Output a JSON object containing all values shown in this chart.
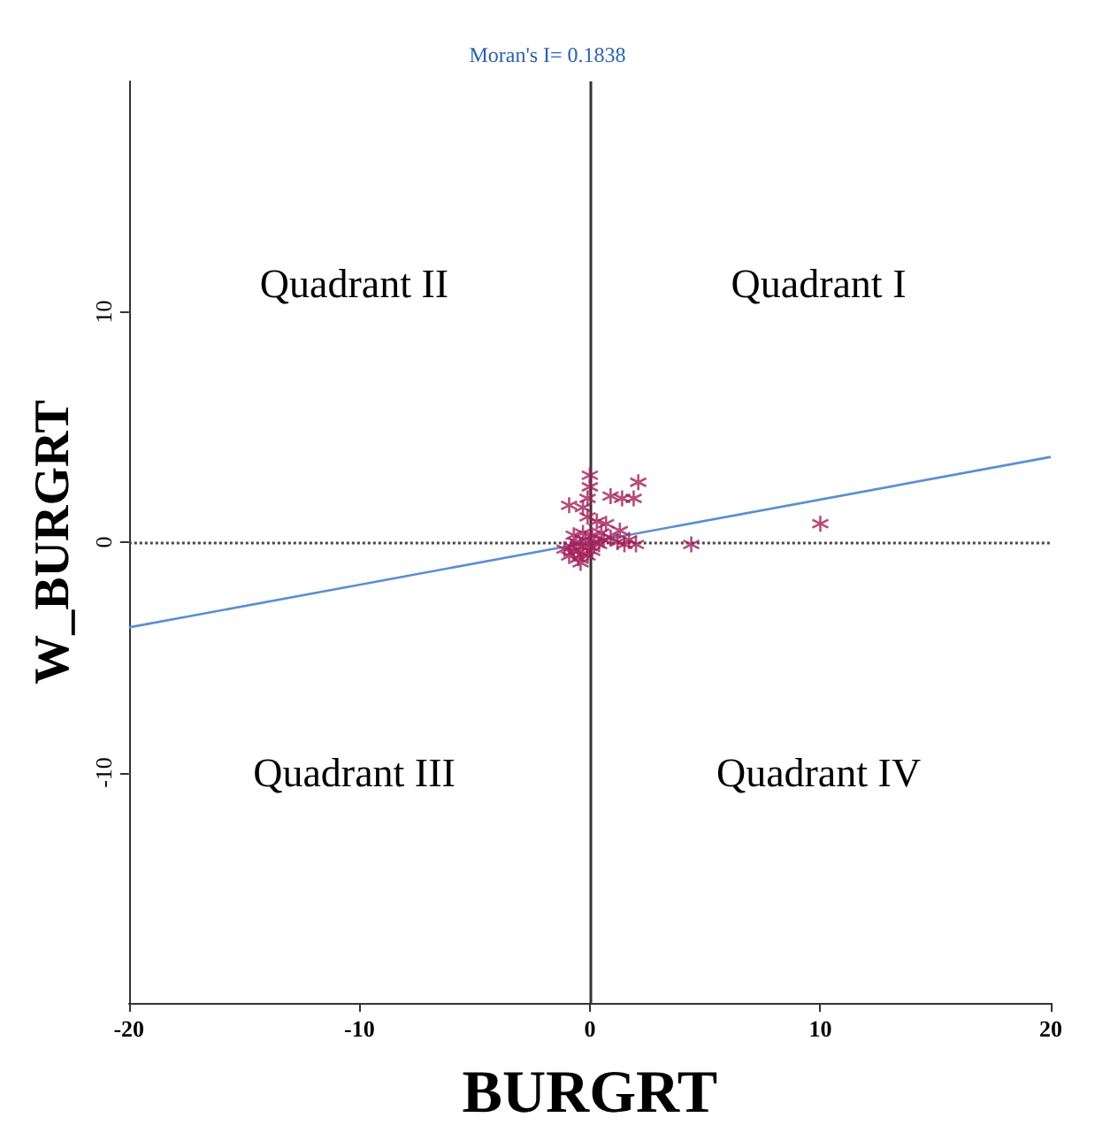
{
  "chart_data": {
    "type": "scatter",
    "title": "Moran's I= 0.1838",
    "xlabel": "BURGRT",
    "ylabel": "W_BURGRT",
    "xlim": [
      -20,
      20
    ],
    "ylim": [
      -20,
      20
    ],
    "xticks": [
      -20,
      -10,
      0,
      10,
      20
    ],
    "yticks": [
      -10,
      0,
      10
    ],
    "grid": false,
    "marker": "cross",
    "series": [
      {
        "color": "#a3215a",
        "x": [
          -0.9,
          -0.7,
          -0.5,
          -0.3,
          -0.1,
          0.1,
          -0.8,
          -0.6,
          -0.4,
          -0.2,
          0,
          0.2,
          0.4,
          0.6,
          -0.7,
          -0.3,
          0.1,
          0.5,
          0.9,
          1.2,
          1.5,
          1.3,
          0.7,
          0.3,
          -0.1,
          -0.3,
          -0.9,
          -0.1,
          0,
          0,
          0.9,
          1.4,
          1.9,
          2.1,
          2,
          1.7,
          4.4,
          10,
          -1.1,
          -0.4
        ],
        "values": [
          -0.6,
          -0.4,
          -0.7,
          -0.5,
          -0.6,
          -0.4,
          -0.2,
          0,
          -0.2,
          0.1,
          -0.2,
          0,
          -0.1,
          0.1,
          0.3,
          0.4,
          0.3,
          0.4,
          0.2,
          0,
          -0.1,
          0.5,
          0.8,
          0.9,
          1.1,
          1.5,
          1.6,
          1.9,
          2.4,
          2.9,
          2,
          1.9,
          1.9,
          2.6,
          -0.1,
          0.1,
          -0.1,
          0.8,
          -0.3,
          -0.9
        ]
      },
      {
        "type": "line",
        "color": "#5b8fd0",
        "marker": "none",
        "x": [
          -20,
          20
        ],
        "values": [
          -3.7,
          3.7
        ]
      }
    ],
    "ref_lines": [
      {
        "axis": "y",
        "value": 0,
        "color": "#444444",
        "line_style": "dotted"
      },
      {
        "axis": "x",
        "value": 0,
        "color": "#333333",
        "line_style": "solid"
      }
    ],
    "annotations": [
      "Quadrant II",
      "Quadrant I",
      "Quadrant III",
      "Quadrant IV"
    ]
  }
}
